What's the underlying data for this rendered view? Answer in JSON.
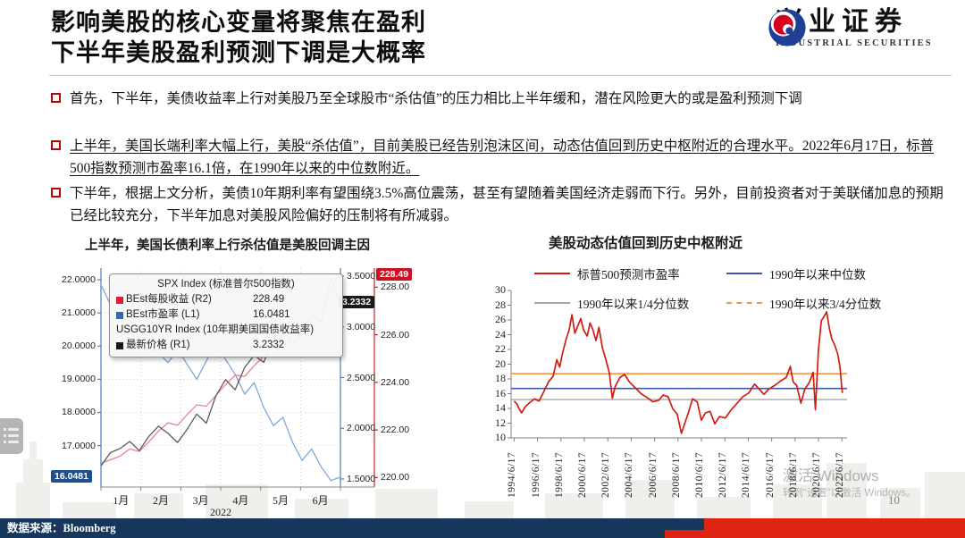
{
  "header": {
    "title_line1": "影响美股的核心变量将聚焦在盈利",
    "title_line2": "下半年美股盈利预测下调是大概率"
  },
  "logo": {
    "name_cn": "兴业证券",
    "name_en": "INDUSTRIAL SECURITIES",
    "red": "#d6001c",
    "blue": "#1e3f96"
  },
  "bullets": [
    {
      "text": "首先，下半年，美债收益率上行对美股乃至全球股市“杀估值”的压力相比上半年缓和，潜在风险更大的或是盈利预测下调"
    },
    {
      "text": "上半年，美国长端利率大幅上行，美股“杀估值”，目前美股已经告别泡沫区间，动态估值回到历史中枢附近的合理水平。2022年6月17日，标普500指数预测市盈率16.1倍，在1990年以来的中位数附近。"
    },
    {
      "text": "下半年，根据上文分析，美债10年期利率有望围绕3.5%高位震荡，甚至有望随着美国经济走弱而下行。另外，目前投资者对于美联储加息的预期已经比较充分，下半年加息对美股风险偏好的压制将有所减弱。"
    }
  ],
  "chart_data": [
    {
      "type": "line",
      "title": "上半年，美国长债利率上行杀估值是美股回调主因",
      "x_categories": [
        "1月",
        "2月",
        "3月",
        "4月",
        "5月",
        "6月"
      ],
      "x_year_label": "2022",
      "axes": {
        "L1": {
          "min": 15.75,
          "max": 22.35,
          "tick_values": [
            22,
            21,
            20,
            19,
            18,
            17
          ],
          "tick_labels": [
            "22.0000",
            "21.0000",
            "20.0000",
            "19.0000",
            "18.0000",
            "17.0000"
          ],
          "badge": "16.0481",
          "badge_value": 16.0481,
          "badge_color": "#1f4e8f",
          "axis_color": "#4a7ebb"
        },
        "R1": {
          "min": 1.42,
          "max": 3.58,
          "tick_values": [
            3.5,
            3.0,
            2.5,
            2.0,
            1.5
          ],
          "tick_labels": [
            "3.5000",
            "3.0000",
            "2.5000",
            "2.0000",
            "1.5000"
          ],
          "badge": "3.2332",
          "badge_value": 3.2332,
          "badge_color": "#1a1a1a",
          "axis_color": "#4a7ebb"
        },
        "R2": {
          "min": 219.6,
          "max": 228.8,
          "tick_values": [
            228,
            226,
            224,
            222,
            220
          ],
          "tick_labels": [
            "228.00",
            "226.00",
            "224.00",
            "222.00",
            "220.00"
          ],
          "badge": "228.49",
          "badge_value": 228.49,
          "badge_color": "#cc1122",
          "axis_color": "#cc2222"
        }
      },
      "tooltip": {
        "header": "SPX Index (标准普尔500指数)",
        "items": [
          {
            "swatch": "#e31937",
            "label": "BEst每股收益 (R2)",
            "value": "228.49"
          },
          {
            "swatch": "#2e6bb0",
            "label": "BEst市盈率 (L1)",
            "value": "16.0481"
          },
          {
            "swatch": "#1a1a1a",
            "label": "最新价格 (R1)",
            "value": "3.2332"
          }
        ],
        "header2": "USGG10YR Index (10年期美国国债收益率)"
      },
      "series": [
        {
          "name": "BEst市盈率",
          "axis": "L1",
          "color": "#7fa8d9",
          "values": [
            21.85,
            21.25,
            20.9,
            21.5,
            21.3,
            20.6,
            19.8,
            19.5,
            19.9,
            19.45,
            19.0,
            19.55,
            20.1,
            19.6,
            19.15,
            18.55,
            18.9,
            18.15,
            17.6,
            17.85,
            17.1,
            16.55,
            16.9,
            16.35,
            15.95,
            16.05
          ]
        },
        {
          "name": "BEst每股收益",
          "axis": "R2",
          "color": "#e8838f",
          "values": [
            220.6,
            220.75,
            220.9,
            221.2,
            221.1,
            221.5,
            221.95,
            222.3,
            222.2,
            222.65,
            223.05,
            223.0,
            223.45,
            223.9,
            224.3,
            224.25,
            224.7,
            225.1,
            225.5,
            225.45,
            225.9,
            226.3,
            226.75,
            227.2,
            227.8,
            228.49
          ]
        },
        {
          "name": "最新价格(USGG10YR)",
          "axis": "R1",
          "color": "#5a5a5a",
          "values": [
            1.63,
            1.76,
            1.8,
            1.87,
            1.78,
            1.92,
            2.02,
            1.95,
            1.86,
            1.99,
            2.14,
            2.05,
            2.32,
            2.48,
            2.38,
            2.6,
            2.72,
            2.65,
            2.9,
            3.0,
            2.82,
            2.95,
            3.12,
            3.05,
            3.49,
            3.23
          ]
        }
      ]
    },
    {
      "type": "line",
      "title": "美股动态估值回到历史中枢附近",
      "legend": [
        {
          "label": "标普500预测市盈率",
          "color": "#cf1d12",
          "dash": false
        },
        {
          "label": "1990年以来中位数",
          "color": "#3a5ca8",
          "dash": false
        },
        {
          "label": "1990年以来1/4分位数",
          "color": "#a6a6a6",
          "dash": false
        },
        {
          "label": "1990年以来3/4分位数",
          "color": "#f2953f",
          "dash": true
        }
      ],
      "ylim": [
        10,
        30
      ],
      "yticks": [
        30,
        28,
        26,
        24,
        22,
        20,
        18,
        16,
        14,
        12,
        10
      ],
      "x_range": [
        1994.2,
        2022.9
      ],
      "xtick_years": [
        1994,
        1996,
        1998,
        2000,
        2002,
        2004,
        2006,
        2008,
        2010,
        2012,
        2014,
        2016,
        2018,
        2020,
        2022
      ],
      "xtick_labels": [
        "1994/6/17",
        "1996/6/17",
        "1998/6/17",
        "2000/6/17",
        "2002/6/17",
        "2004/6/17",
        "2006/6/17",
        "2008/6/17",
        "2010/6/17",
        "2012/6/17",
        "2014/6/17",
        "2016/6/17",
        "2018/6/17",
        "2020/6/17",
        "2022/6/17"
      ],
      "reference_lines": {
        "median": 16.7,
        "q1": 15.2,
        "q3": 18.7
      },
      "series": [
        {
          "name": "标普500预测市盈率",
          "color": "#cf1d12",
          "points": [
            [
              1994.45,
              15.0
            ],
            [
              1994.7,
              14.6
            ],
            [
              1994.9,
              13.9
            ],
            [
              1995.1,
              13.4
            ],
            [
              1995.4,
              14.2
            ],
            [
              1995.8,
              14.8
            ],
            [
              1996.2,
              15.3
            ],
            [
              1996.6,
              15.0
            ],
            [
              1997.0,
              16.3
            ],
            [
              1997.4,
              17.6
            ],
            [
              1997.8,
              18.4
            ],
            [
              1998.1,
              20.6
            ],
            [
              1998.35,
              19.6
            ],
            [
              1998.6,
              21.5
            ],
            [
              1998.9,
              23.4
            ],
            [
              1999.15,
              24.6
            ],
            [
              1999.4,
              26.7
            ],
            [
              1999.65,
              24.2
            ],
            [
              1999.9,
              25.2
            ],
            [
              2000.15,
              26.2
            ],
            [
              2000.4,
              24.6
            ],
            [
              2000.7,
              23.8
            ],
            [
              2000.95,
              25.6
            ],
            [
              2001.2,
              24.6
            ],
            [
              2001.45,
              23.2
            ],
            [
              2001.7,
              25.0
            ],
            [
              2002.0,
              22.2
            ],
            [
              2002.3,
              20.6
            ],
            [
              2002.6,
              18.8
            ],
            [
              2002.85,
              15.4
            ],
            [
              2003.1,
              17.0
            ],
            [
              2003.5,
              18.2
            ],
            [
              2003.9,
              18.6
            ],
            [
              2004.3,
              17.6
            ],
            [
              2004.8,
              16.8
            ],
            [
              2005.3,
              16.0
            ],
            [
              2005.8,
              15.5
            ],
            [
              2006.3,
              14.9
            ],
            [
              2006.8,
              15.1
            ],
            [
              2007.2,
              15.8
            ],
            [
              2007.6,
              15.6
            ],
            [
              2008.0,
              14.0
            ],
            [
              2008.4,
              13.2
            ],
            [
              2008.75,
              10.6
            ],
            [
              2009.0,
              11.8
            ],
            [
              2009.3,
              13.2
            ],
            [
              2009.7,
              15.3
            ],
            [
              2010.1,
              14.9
            ],
            [
              2010.45,
              12.4
            ],
            [
              2010.8,
              13.4
            ],
            [
              2011.2,
              13.6
            ],
            [
              2011.6,
              11.9
            ],
            [
              2012.0,
              12.9
            ],
            [
              2012.5,
              12.7
            ],
            [
              2013.0,
              13.8
            ],
            [
              2013.5,
              14.7
            ],
            [
              2014.0,
              15.6
            ],
            [
              2014.5,
              16.1
            ],
            [
              2015.0,
              17.3
            ],
            [
              2015.4,
              16.6
            ],
            [
              2015.8,
              15.9
            ],
            [
              2016.2,
              16.6
            ],
            [
              2016.7,
              17.1
            ],
            [
              2017.2,
              17.7
            ],
            [
              2017.7,
              18.2
            ],
            [
              2018.05,
              19.7
            ],
            [
              2018.3,
              17.6
            ],
            [
              2018.6,
              17.1
            ],
            [
              2018.95,
              14.7
            ],
            [
              2019.3,
              16.6
            ],
            [
              2019.7,
              17.6
            ],
            [
              2020.0,
              18.9
            ],
            [
              2020.2,
              13.8
            ],
            [
              2020.45,
              21.8
            ],
            [
              2020.7,
              25.9
            ],
            [
              2020.95,
              26.5
            ],
            [
              2021.15,
              27.1
            ],
            [
              2021.4,
              24.8
            ],
            [
              2021.6,
              23.4
            ],
            [
              2021.85,
              22.6
            ],
            [
              2022.1,
              21.4
            ],
            [
              2022.3,
              19.6
            ],
            [
              2022.42,
              17.4
            ],
            [
              2022.5,
              16.1
            ]
          ]
        }
      ]
    }
  ],
  "watermark": {
    "line1": "激活 Windows",
    "line2": "转到“设置”以激活 Windows。"
  },
  "footer": {
    "source_label": "数据来源：",
    "source": "Bloomberg",
    "page": "10"
  }
}
